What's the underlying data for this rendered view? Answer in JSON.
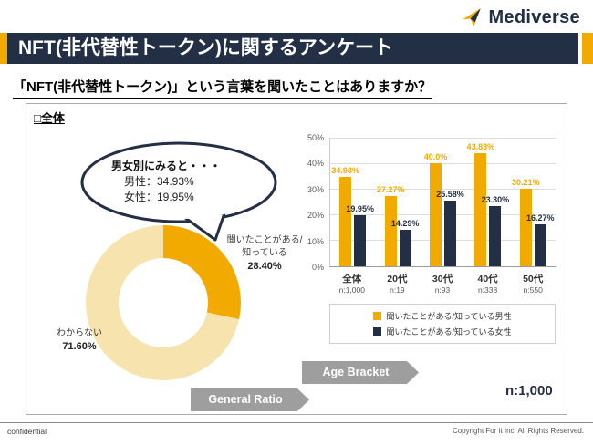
{
  "logo": {
    "text": "Mediverse"
  },
  "banner": {
    "title": "NFT(非代替性トークン)に関するアンケート"
  },
  "question": "「NFT(非代替性トークン)」という言葉を聞いたことはありますか？",
  "panel": {
    "section_label": "□全体",
    "callout": {
      "title": "男女別にみると・・・",
      "male": "男性：34.93%",
      "female": "女性：19.95%"
    },
    "donut_labels": {
      "aware_line1": "聞いたことがある/",
      "aware_line2": "知っている",
      "aware_value": "28.40%",
      "unknown_label": "わからない",
      "unknown_value": "71.60%"
    },
    "general_arrow": "General Ratio",
    "age_arrow": "Age Bracket",
    "n_total": "n:1,000"
  },
  "footer": {
    "left": "confidential",
    "right": "Copyright For it Inc. All Rights Reserved."
  },
  "colors": {
    "navy": "#232F44",
    "gold": "#F2A900",
    "pale_gold": "#F7E3AD",
    "arrow_gray": "#9E9E9E"
  },
  "chart_data": [
    {
      "type": "pie",
      "donut": true,
      "title": "General Ratio",
      "slices": [
        {
          "label": "聞いたことがある/知っている",
          "value": 28.4,
          "display": "28.40%",
          "color": "#F2A900"
        },
        {
          "label": "わからない",
          "value": 71.6,
          "display": "71.60%",
          "color": "#F7E3AD"
        }
      ]
    },
    {
      "type": "bar",
      "title": "Age Bracket",
      "categories": [
        "全体",
        "20代",
        "30代",
        "40代",
        "50代"
      ],
      "category_ns": [
        "n:1,000",
        "n:19",
        "n:93",
        "n:338",
        "n:550"
      ],
      "series": [
        {
          "name": "聞いたことがある/知っている男性",
          "color": "#F2A900",
          "values": [
            34.93,
            27.27,
            40.0,
            43.83,
            30.21
          ],
          "labels": [
            "34.93%",
            "27.27%",
            "40.0%",
            "43.83%",
            "30.21%"
          ]
        },
        {
          "name": "聞いたことがある/知っている女性",
          "color": "#232F44",
          "values": [
            19.95,
            14.29,
            25.58,
            23.3,
            16.27
          ],
          "labels": [
            "19.95%",
            "14.29%",
            "25.58%",
            "23.30%",
            "16.27%"
          ]
        }
      ],
      "ylim": [
        0,
        50
      ],
      "yticks": [
        "50%",
        "40%",
        "30%",
        "20%",
        "10%",
        "0%"
      ],
      "grid": true,
      "legend_position": "bottom"
    }
  ]
}
